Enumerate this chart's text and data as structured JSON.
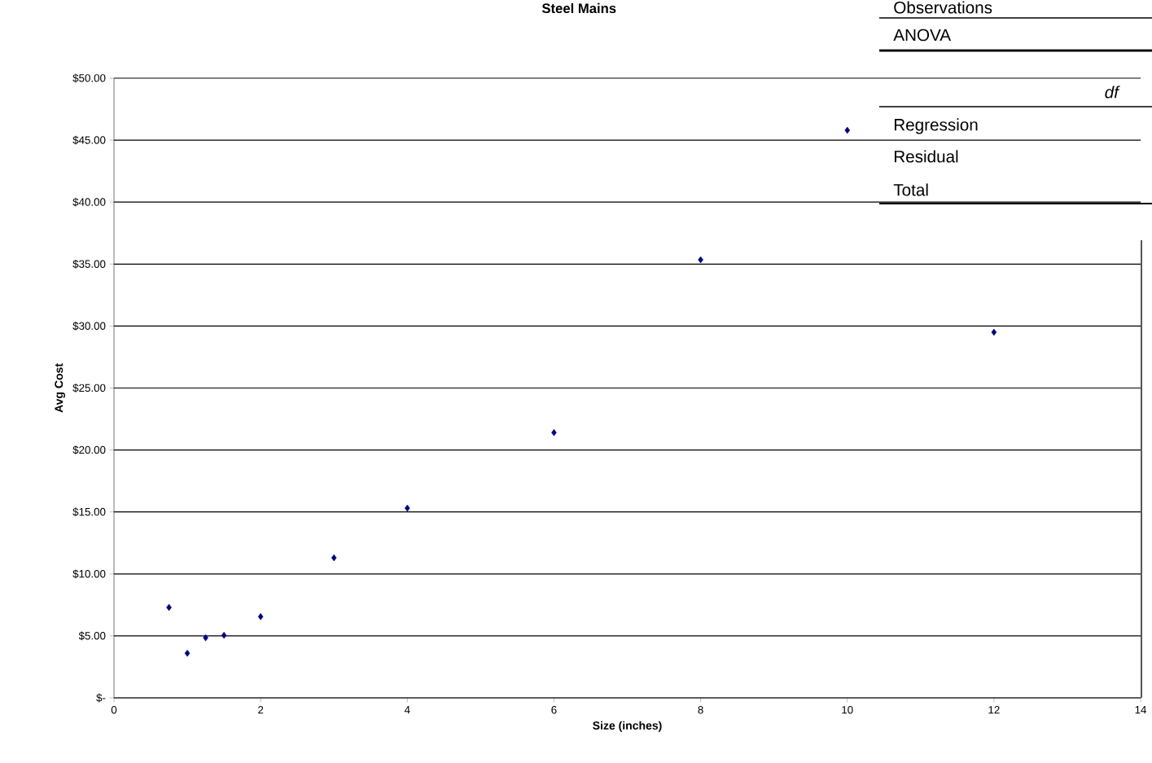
{
  "chart_data": {
    "type": "scatter",
    "title": "Steel Mains",
    "xlabel": "Size (inches)",
    "ylabel": "Avg Cost",
    "x": [
      0.75,
      1,
      1.25,
      1.5,
      2,
      3,
      4,
      6,
      8,
      10,
      12
    ],
    "values": [
      7.3,
      3.6,
      4.85,
      5.05,
      6.55,
      11.3,
      15.3,
      21.4,
      35.35,
      45.8,
      29.5
    ],
    "color": "#000080",
    "marker": "diamond",
    "grid": "y",
    "xlim": [
      0,
      14
    ],
    "xticks": [
      0,
      2,
      4,
      6,
      8,
      10,
      12,
      14
    ],
    "ylim": [
      0,
      50
    ],
    "yticks": [
      {
        "value": 0,
        "label": "$-"
      },
      {
        "value": 5,
        "label": "$5.00"
      },
      {
        "value": 10,
        "label": "$10.00"
      },
      {
        "value": 15,
        "label": "$15.00"
      },
      {
        "value": 20,
        "label": "$20.00"
      },
      {
        "value": 25,
        "label": "$25.00"
      },
      {
        "value": 30,
        "label": "$30.00"
      },
      {
        "value": 35,
        "label": "$35.00"
      },
      {
        "value": 40,
        "label": "$40.00"
      },
      {
        "value": 45,
        "label": "$45.00"
      },
      {
        "value": 50,
        "label": "$50.00"
      }
    ],
    "annotations": [
      "Observations",
      "ANOVA",
      "*df*",
      "Regression",
      "Residual",
      "Total"
    ]
  }
}
